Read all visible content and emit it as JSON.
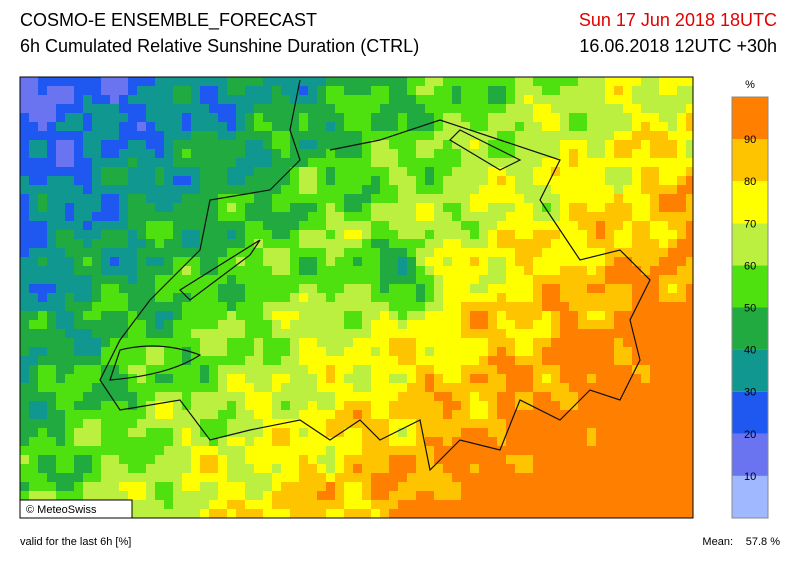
{
  "header": {
    "title": "COSMO-E ENSEMBLE_FORECAST",
    "subtitle": "6h Cumulated Relative Sunshine Duration (CTRL)",
    "valid_time": "Sun 17 Jun 2018 18UTC",
    "run_time": "16.06.2018 12UTC +30h"
  },
  "map": {
    "copyright": "© MeteoSwiss"
  },
  "colorbar": {
    "unit": "%",
    "ticks": [
      10,
      20,
      30,
      40,
      50,
      60,
      70,
      80,
      90
    ],
    "colors": [
      "#a0b8ff",
      "#6a74f0",
      "#1e58f0",
      "#109890",
      "#20aa40",
      "#4fe010",
      "#bcf040",
      "#ffff00",
      "#ffc400",
      "#ff8000"
    ]
  },
  "footer": {
    "note": "valid for the last 6h [%]",
    "mean_label": "Mean:",
    "mean_value": "57.8 %"
  }
}
